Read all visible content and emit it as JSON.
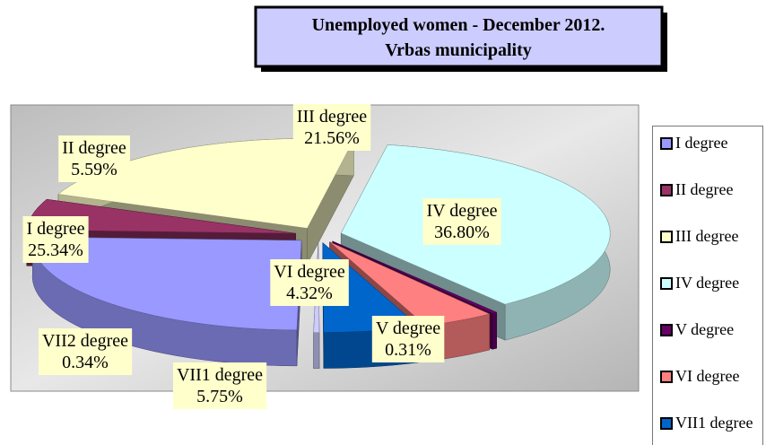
{
  "chart_data": {
    "type": "pie3d",
    "title": [
      "Unemployed women - December 2012.",
      "Vrbas municipality"
    ],
    "categories": [
      "I degree",
      "II degree",
      "III degree",
      "IV degree",
      "V degree",
      "VI degree",
      "VII1 degree",
      "VII2 degree"
    ],
    "values": [
      25.34,
      5.59,
      21.56,
      36.8,
      0.31,
      4.32,
      5.75,
      0.34
    ],
    "value_labels": [
      "25.34%",
      "5.59%",
      "21.56%",
      "36.80%",
      "0.31%",
      "4.32%",
      "5.75%",
      "0.34%"
    ],
    "colors": [
      "#9999ff",
      "#993366",
      "#ffffcc",
      "#ccffff",
      "#660066",
      "#ff8080",
      "#0066cc",
      "#ccccff"
    ],
    "legend": "right"
  }
}
